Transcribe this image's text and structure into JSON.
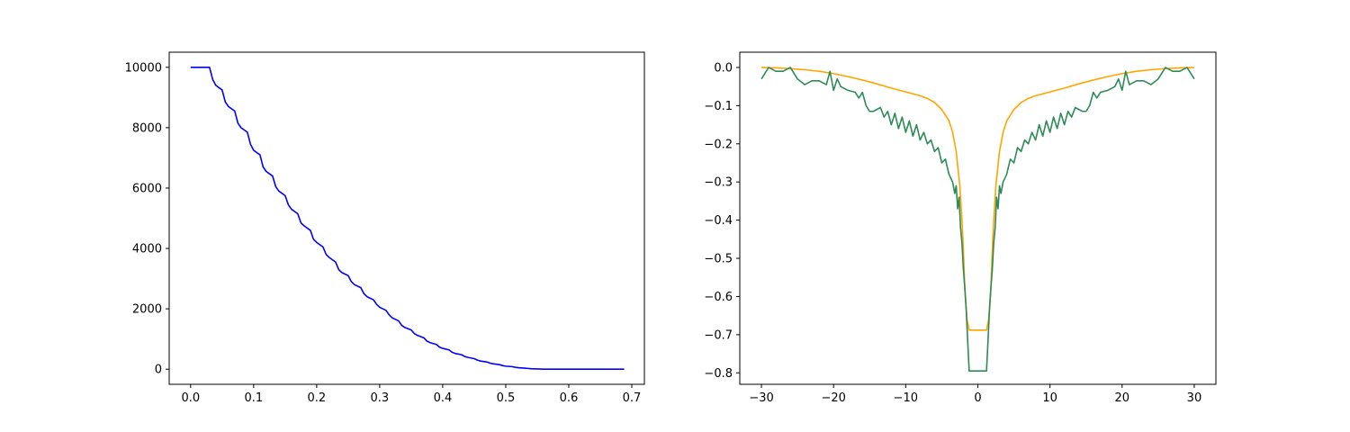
{
  "chart_data": [
    {
      "type": "line",
      "title": "",
      "xlabel": "",
      "ylabel": "",
      "xlim": [
        -0.034,
        0.72
      ],
      "ylim": [
        -500,
        10500
      ],
      "xticks": [
        0.0,
        0.1,
        0.2,
        0.3,
        0.4,
        0.5,
        0.6,
        0.7
      ],
      "xtick_labels": [
        "0.0",
        "0.1",
        "0.2",
        "0.3",
        "0.4",
        "0.5",
        "0.6",
        "0.7"
      ],
      "yticks": [
        0,
        2000,
        4000,
        6000,
        8000,
        10000
      ],
      "ytick_labels": [
        "0",
        "2000",
        "4000",
        "6000",
        "8000",
        "10000"
      ],
      "grid": false,
      "series": [
        {
          "color": "#0000ff",
          "x": [
            0.0,
            0.03,
            0.035,
            0.04,
            0.05,
            0.055,
            0.06,
            0.07,
            0.075,
            0.08,
            0.09,
            0.095,
            0.1,
            0.11,
            0.115,
            0.12,
            0.13,
            0.135,
            0.14,
            0.15,
            0.155,
            0.16,
            0.17,
            0.175,
            0.18,
            0.19,
            0.195,
            0.2,
            0.21,
            0.215,
            0.22,
            0.23,
            0.235,
            0.24,
            0.25,
            0.255,
            0.26,
            0.27,
            0.275,
            0.28,
            0.29,
            0.295,
            0.3,
            0.31,
            0.315,
            0.32,
            0.33,
            0.335,
            0.34,
            0.35,
            0.355,
            0.36,
            0.37,
            0.375,
            0.38,
            0.39,
            0.395,
            0.4,
            0.41,
            0.415,
            0.42,
            0.43,
            0.435,
            0.44,
            0.45,
            0.455,
            0.46,
            0.47,
            0.475,
            0.48,
            0.49,
            0.495,
            0.5,
            0.51,
            0.515,
            0.52,
            0.53,
            0.535,
            0.54,
            0.55,
            0.555,
            0.56,
            0.58,
            0.6,
            0.62,
            0.64,
            0.66,
            0.688
          ],
          "y": [
            10000,
            10000,
            9600,
            9400,
            9250,
            8850,
            8700,
            8550,
            8150,
            8000,
            7850,
            7450,
            7250,
            7100,
            6700,
            6550,
            6400,
            6050,
            5900,
            5750,
            5450,
            5300,
            5150,
            4850,
            4750,
            4600,
            4300,
            4200,
            4050,
            3800,
            3700,
            3550,
            3300,
            3200,
            3100,
            2900,
            2800,
            2700,
            2500,
            2400,
            2300,
            2150,
            2050,
            1950,
            1800,
            1700,
            1600,
            1450,
            1380,
            1300,
            1180,
            1120,
            1040,
            930,
            880,
            820,
            730,
            690,
            640,
            560,
            520,
            480,
            420,
            390,
            350,
            300,
            270,
            240,
            200,
            180,
            150,
            120,
            100,
            85,
            65,
            50,
            35,
            25,
            15,
            10,
            5,
            0,
            0,
            0,
            0,
            0,
            0,
            0
          ]
        }
      ]
    },
    {
      "type": "line",
      "title": "",
      "xlabel": "",
      "ylabel": "",
      "xlim": [
        -33,
        33
      ],
      "ylim": [
        -0.83,
        0.04
      ],
      "xticks": [
        -30,
        -20,
        -10,
        0,
        10,
        20,
        30
      ],
      "xtick_labels": [
        "−30",
        "−20",
        "−10",
        "0",
        "10",
        "20",
        "30"
      ],
      "yticks": [
        0.0,
        -0.1,
        -0.2,
        -0.3,
        -0.4,
        -0.5,
        -0.6,
        -0.7,
        -0.8
      ],
      "ytick_labels": [
        "0.0",
        "−0.1",
        "−0.2",
        "−0.3",
        "−0.4",
        "−0.5",
        "−0.6",
        "−0.7",
        "−0.8"
      ],
      "grid": false,
      "series": [
        {
          "color": "#ffa500",
          "x": [
            -30,
            -28,
            -26,
            -24,
            -22,
            -20,
            -18,
            -16,
            -14,
            -12,
            -10,
            -8,
            -7,
            -6,
            -5,
            -4,
            -3.5,
            -3,
            -2.5,
            -2.2,
            -2,
            -1.8,
            -1.5,
            -1.2,
            1.2,
            1.5,
            1.8,
            2,
            2.2,
            2.5,
            3,
            3.5,
            4,
            5,
            6,
            7,
            8,
            10,
            12,
            14,
            16,
            18,
            20,
            22,
            24,
            26,
            28,
            30
          ],
          "y": [
            0,
            -0.001,
            -0.003,
            -0.006,
            -0.01,
            -0.016,
            -0.024,
            -0.033,
            -0.043,
            -0.054,
            -0.064,
            -0.074,
            -0.081,
            -0.092,
            -0.11,
            -0.14,
            -0.17,
            -0.22,
            -0.31,
            -0.4,
            -0.48,
            -0.58,
            -0.66,
            -0.688,
            -0.688,
            -0.66,
            -0.58,
            -0.48,
            -0.4,
            -0.31,
            -0.22,
            -0.17,
            -0.14,
            -0.11,
            -0.092,
            -0.081,
            -0.074,
            -0.064,
            -0.054,
            -0.043,
            -0.033,
            -0.024,
            -0.016,
            -0.01,
            -0.006,
            -0.003,
            -0.001,
            0
          ]
        },
        {
          "color": "#2e8b57",
          "x": [
            -30,
            -29,
            -28,
            -27,
            -26,
            -25,
            -24,
            -23,
            -22,
            -21,
            -20.5,
            -20,
            -19.5,
            -19,
            -18,
            -17,
            -16.5,
            -16,
            -15.5,
            -15,
            -14.5,
            -14,
            -13.5,
            -13,
            -12.5,
            -12,
            -11.5,
            -11,
            -10.5,
            -10,
            -9.5,
            -9,
            -8.5,
            -8,
            -7.5,
            -7,
            -6.5,
            -6,
            -5.5,
            -5,
            -4.5,
            -4,
            -3.5,
            -3.2,
            -3,
            -2.8,
            -2.6,
            -2.4,
            -2.2,
            -2,
            -1.8,
            -1.6,
            -1.4,
            -1.2,
            1.2,
            1.4,
            1.6,
            1.8,
            2,
            2.2,
            2.4,
            2.6,
            2.8,
            3,
            3.2,
            3.5,
            4,
            4.5,
            5,
            5.5,
            6,
            6.5,
            7,
            7.5,
            8,
            8.5,
            9,
            9.5,
            10,
            10.5,
            11,
            11.5,
            12,
            12.5,
            13,
            13.5,
            14,
            14.5,
            15,
            15.5,
            16,
            16.5,
            17,
            18,
            19,
            19.5,
            20,
            20.5,
            21,
            22,
            23,
            24,
            25,
            26,
            27,
            28,
            29,
            30
          ],
          "y": [
            -0.03,
            0,
            -0.01,
            -0.01,
            0,
            -0.03,
            -0.045,
            -0.035,
            -0.035,
            -0.045,
            -0.01,
            -0.06,
            -0.03,
            -0.05,
            -0.06,
            -0.065,
            -0.08,
            -0.065,
            -0.1,
            -0.115,
            -0.115,
            -0.11,
            -0.105,
            -0.13,
            -0.115,
            -0.15,
            -0.12,
            -0.16,
            -0.13,
            -0.17,
            -0.14,
            -0.18,
            -0.15,
            -0.19,
            -0.17,
            -0.2,
            -0.19,
            -0.22,
            -0.21,
            -0.25,
            -0.24,
            -0.28,
            -0.3,
            -0.33,
            -0.31,
            -0.37,
            -0.34,
            -0.42,
            -0.46,
            -0.53,
            -0.58,
            -0.64,
            -0.72,
            -0.795,
            -0.795,
            -0.72,
            -0.64,
            -0.58,
            -0.53,
            -0.46,
            -0.42,
            -0.34,
            -0.37,
            -0.31,
            -0.33,
            -0.3,
            -0.28,
            -0.24,
            -0.25,
            -0.21,
            -0.22,
            -0.19,
            -0.2,
            -0.17,
            -0.19,
            -0.15,
            -0.18,
            -0.14,
            -0.17,
            -0.13,
            -0.16,
            -0.12,
            -0.15,
            -0.115,
            -0.13,
            -0.105,
            -0.11,
            -0.115,
            -0.115,
            -0.1,
            -0.065,
            -0.08,
            -0.065,
            -0.06,
            -0.05,
            -0.03,
            -0.06,
            -0.01,
            -0.045,
            -0.035,
            -0.035,
            -0.045,
            -0.03,
            0,
            -0.01,
            -0.01,
            0,
            -0.03
          ]
        }
      ]
    }
  ]
}
